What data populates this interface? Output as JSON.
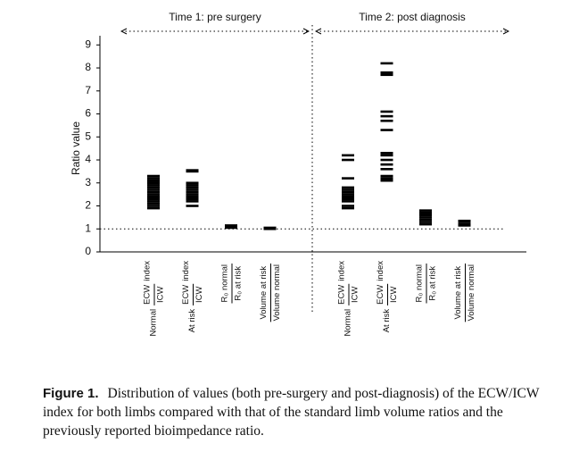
{
  "chart_data": {
    "type": "strip",
    "ylabel": "Ratio value",
    "ylim": [
      0,
      9.4
    ],
    "yticks": [
      0,
      1,
      2,
      3,
      4,
      5,
      6,
      7,
      8,
      9
    ],
    "reference_line": 1,
    "color": "#000000",
    "groups": [
      {
        "title": "Time 1: pre surgery",
        "series": [
          {
            "prefix": "Normal",
            "numerator": "ECW",
            "denominator": "ICW",
            "suffix": "index",
            "values": [
              1.9,
              2.0,
              2.1,
              2.2,
              2.3,
              2.35,
              2.4,
              2.5,
              2.6,
              2.7,
              2.8,
              2.9,
              3.0,
              3.1,
              3.2,
              3.3
            ]
          },
          {
            "prefix": "At risk",
            "numerator": "ECW",
            "denominator": "ICW",
            "suffix": "index",
            "values": [
              2.0,
              2.2,
              2.3,
              2.4,
              2.5,
              2.6,
              2.7,
              2.8,
              2.9,
              3.0,
              3.5,
              3.55
            ]
          },
          {
            "numerator": "R₀ normal",
            "denominator": "R₀ at risk",
            "values": [
              1.05,
              1.1,
              1.15
            ]
          },
          {
            "numerator": "Volume at risk",
            "denominator": "Volume normal",
            "values": [
              1.0,
              1.02,
              1.05
            ]
          }
        ]
      },
      {
        "title": "Time 2: post diagnosis",
        "series": [
          {
            "prefix": "Normal",
            "numerator": "ECW",
            "denominator": "ICW",
            "suffix": "index",
            "values": [
              1.9,
              2.0,
              2.2,
              2.3,
              2.4,
              2.5,
              2.6,
              2.7,
              2.8,
              3.2,
              4.0,
              4.2
            ]
          },
          {
            "prefix": "At risk",
            "numerator": "ECW",
            "denominator": "ICW",
            "suffix": "index",
            "values": [
              3.1,
              3.15,
              3.2,
              3.3,
              3.6,
              3.8,
              4.0,
              4.2,
              4.3,
              5.3,
              5.7,
              5.9,
              6.1,
              7.7,
              7.8,
              8.2
            ]
          },
          {
            "numerator": "R₀ normal",
            "denominator": "R₀ at risk",
            "values": [
              1.2,
              1.3,
              1.4,
              1.5,
              1.6,
              1.7,
              1.8
            ]
          },
          {
            "numerator": "Volume at risk",
            "denominator": "Volume normal",
            "values": [
              1.15,
              1.2,
              1.3,
              1.35
            ]
          }
        ]
      }
    ],
    "figure_label": "Figure 1.",
    "caption": "Distribution of values (both pre-surgery and post-diagnosis) of the ECW/ICW index for both limbs compared with that of the standard limb volume ratios and the previously reported bioimpedance ratio."
  }
}
